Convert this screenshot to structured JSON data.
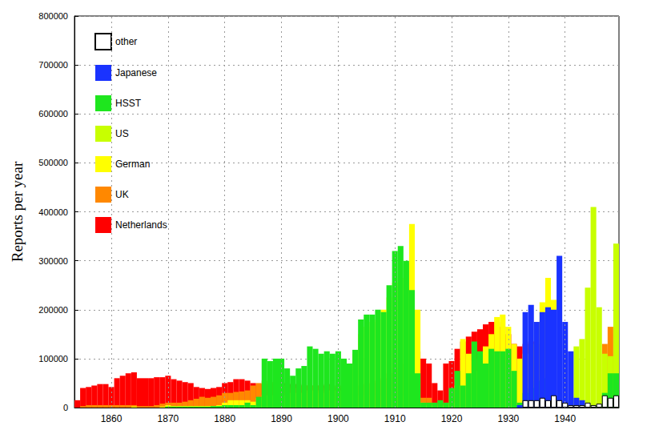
{
  "chart_data": {
    "type": "bar",
    "stacked": true,
    "grid": true,
    "legend": "upper left",
    "ylabel": "Reports per year",
    "xlim": [
      1853.5,
      1949.5
    ],
    "xticks": [
      1860,
      1870,
      1880,
      1890,
      1900,
      1910,
      1920,
      1930,
      1940
    ],
    "ylim": [
      0,
      800000
    ],
    "yticks": [
      0,
      100000,
      200000,
      300000,
      400000,
      500000,
      600000,
      700000,
      800000
    ],
    "x": [
      1854,
      1855,
      1856,
      1857,
      1858,
      1859,
      1860,
      1861,
      1862,
      1863,
      1864,
      1865,
      1866,
      1867,
      1868,
      1869,
      1870,
      1871,
      1872,
      1873,
      1874,
      1875,
      1876,
      1877,
      1878,
      1879,
      1880,
      1881,
      1882,
      1883,
      1884,
      1885,
      1886,
      1887,
      1888,
      1889,
      1890,
      1891,
      1892,
      1893,
      1894,
      1895,
      1896,
      1897,
      1898,
      1899,
      1900,
      1901,
      1902,
      1903,
      1904,
      1905,
      1906,
      1907,
      1908,
      1909,
      1910,
      1911,
      1912,
      1913,
      1914,
      1915,
      1916,
      1917,
      1918,
      1919,
      1920,
      1921,
      1922,
      1923,
      1924,
      1925,
      1926,
      1927,
      1928,
      1929,
      1930,
      1931,
      1932,
      1933,
      1934,
      1935,
      1936,
      1937,
      1938,
      1939,
      1940,
      1941,
      1942,
      1943,
      1944,
      1945,
      1946,
      1947,
      1948,
      1949
    ],
    "series": [
      {
        "name": "Netherlands",
        "color": "#ff0000",
        "values": [
          15000,
          40000,
          42000,
          45000,
          48000,
          48000,
          42000,
          60000,
          65000,
          70000,
          72000,
          60000,
          60000,
          60000,
          62000,
          62000,
          65000,
          58000,
          55000,
          52000,
          50000,
          42000,
          40000,
          38000,
          40000,
          42000,
          50000,
          52000,
          58000,
          58000,
          55000,
          50000,
          48000,
          48000,
          48000,
          50000,
          50000,
          50000,
          48000,
          48000,
          45000,
          45000,
          45000,
          45000,
          48000,
          40000,
          40000,
          35000,
          40000,
          42000,
          45000,
          48000,
          50000,
          55000,
          60000,
          70000,
          80000,
          90000,
          100000,
          110000,
          115000,
          100000,
          90000,
          50000,
          35000,
          90000,
          95000,
          120000,
          135000,
          145000,
          155000,
          160000,
          170000,
          175000,
          175000,
          165000,
          150000,
          130000,
          125000,
          130000,
          135000,
          130000,
          140000,
          155000,
          55000,
          10000,
          5000,
          3000,
          2000,
          2000,
          2000,
          2000,
          2000,
          5000,
          10000,
          30000
        ]
      },
      {
        "name": "UK",
        "color": "#ff8800",
        "values": [
          0,
          3000,
          5000,
          5000,
          5000,
          5000,
          5000,
          5000,
          5000,
          5000,
          5000,
          3000,
          3000,
          3000,
          5000,
          8000,
          10000,
          10000,
          10000,
          12000,
          15000,
          18000,
          22000,
          20000,
          22000,
          25000,
          30000,
          30000,
          32000,
          33000,
          35000,
          45000,
          50000,
          55000,
          52000,
          55000,
          50000,
          45000,
          40000,
          40000,
          45000,
          45000,
          45000,
          40000,
          45000,
          45000,
          45000,
          30000,
          30000,
          30000,
          25000,
          25000,
          25000,
          25000,
          25000,
          25000,
          25000,
          25000,
          25000,
          25000,
          20000,
          20000,
          20000,
          10000,
          5000,
          10000,
          15000,
          40000,
          60000,
          95000,
          100000,
          105000,
          105000,
          95000,
          80000,
          75000,
          65000,
          70000,
          65000,
          50000,
          45000,
          50000,
          50000,
          40000,
          105000,
          10000,
          5000,
          5000,
          3000,
          3000,
          3000,
          3000,
          5000,
          130000,
          165000,
          150000
        ]
      },
      {
        "name": "German",
        "color": "#ffff00",
        "values": [
          0,
          0,
          0,
          0,
          0,
          0,
          0,
          0,
          0,
          0,
          2000,
          0,
          0,
          0,
          0,
          2000,
          5000,
          3000,
          3000,
          3000,
          3000,
          3000,
          3000,
          3000,
          3000,
          5000,
          10000,
          15000,
          15000,
          15000,
          15000,
          12000,
          20000,
          25000,
          25000,
          25000,
          25000,
          25000,
          30000,
          30000,
          30000,
          35000,
          35000,
          30000,
          35000,
          35000,
          35000,
          20000,
          40000,
          110000,
          150000,
          165000,
          175000,
          180000,
          200000,
          225000,
          255000,
          265000,
          295000,
          375000,
          200000,
          10000,
          5000,
          5000,
          0,
          5000,
          10000,
          45000,
          140000,
          110000,
          75000,
          90000,
          125000,
          150000,
          185000,
          190000,
          165000,
          130000,
          100000,
          110000,
          130000,
          175000,
          215000,
          265000,
          220000,
          20000,
          10000,
          2000,
          0,
          0,
          0,
          0,
          0,
          5000,
          5000,
          10000
        ]
      },
      {
        "name": "US",
        "color": "#c8ff00",
        "values": [
          0,
          0,
          0,
          0,
          0,
          0,
          0,
          0,
          0,
          0,
          0,
          0,
          0,
          0,
          0,
          0,
          0,
          0,
          0,
          0,
          0,
          0,
          0,
          0,
          0,
          0,
          0,
          0,
          0,
          0,
          0,
          0,
          0,
          0,
          0,
          0,
          0,
          0,
          0,
          0,
          0,
          0,
          0,
          0,
          0,
          0,
          0,
          0,
          0,
          0,
          0,
          0,
          0,
          0,
          0,
          0,
          0,
          0,
          0,
          0,
          0,
          0,
          0,
          0,
          0,
          0,
          0,
          0,
          0,
          0,
          0,
          0,
          0,
          0,
          0,
          0,
          0,
          0,
          5000,
          0,
          0,
          0,
          0,
          0,
          0,
          5000,
          5000,
          15000,
          125000,
          140000,
          245000,
          410000,
          205000,
          110000,
          105000,
          335000
        ]
      },
      {
        "name": "HSST",
        "color": "#1ee61e",
        "values": [
          0,
          0,
          0,
          0,
          0,
          0,
          0,
          0,
          0,
          0,
          0,
          0,
          0,
          0,
          0,
          0,
          2000,
          2000,
          2000,
          2000,
          2000,
          2000,
          2000,
          2000,
          3000,
          3000,
          5000,
          5000,
          5000,
          5000,
          10000,
          5000,
          22000,
          100000,
          95000,
          100000,
          100000,
          80000,
          65000,
          80000,
          85000,
          125000,
          120000,
          110000,
          115000,
          110000,
          115000,
          100000,
          90000,
          118000,
          180000,
          190000,
          190000,
          200000,
          195000,
          250000,
          320000,
          330000,
          300000,
          240000,
          70000,
          10000,
          10000,
          10000,
          15000,
          10000,
          40000,
          75000,
          45000,
          70000,
          135000,
          115000,
          90000,
          120000,
          115000,
          115000,
          120000,
          75000,
          10000,
          30000,
          40000,
          55000,
          60000,
          30000,
          20000,
          10000,
          0,
          0,
          0,
          0,
          0,
          5000,
          5000,
          30000,
          70000,
          70000
        ]
      },
      {
        "name": "Japanese",
        "color": "#1a33ff",
        "values": [
          0,
          0,
          0,
          0,
          0,
          0,
          0,
          0,
          0,
          0,
          0,
          0,
          0,
          0,
          0,
          0,
          0,
          0,
          0,
          0,
          0,
          0,
          0,
          0,
          0,
          0,
          0,
          0,
          0,
          0,
          0,
          0,
          0,
          0,
          0,
          0,
          0,
          0,
          0,
          0,
          0,
          0,
          0,
          0,
          0,
          0,
          0,
          0,
          0,
          0,
          0,
          0,
          0,
          0,
          0,
          0,
          0,
          0,
          0,
          0,
          0,
          0,
          0,
          0,
          0,
          0,
          0,
          0,
          0,
          0,
          0,
          0,
          0,
          0,
          0,
          0,
          0,
          0,
          5000,
          195000,
          210000,
          175000,
          195000,
          205000,
          200000,
          310000,
          175000,
          115000,
          20000,
          15000,
          0,
          0,
          0,
          0,
          0,
          0
        ]
      },
      {
        "name": "other",
        "color": "#ffffff",
        "values": [
          0,
          0,
          0,
          0,
          0,
          0,
          0,
          0,
          0,
          0,
          0,
          0,
          0,
          0,
          0,
          0,
          0,
          0,
          0,
          0,
          0,
          0,
          0,
          0,
          0,
          0,
          0,
          0,
          0,
          0,
          0,
          0,
          0,
          0,
          0,
          0,
          0,
          0,
          0,
          0,
          0,
          0,
          0,
          0,
          0,
          0,
          0,
          0,
          0,
          0,
          0,
          0,
          0,
          0,
          0,
          0,
          0,
          0,
          0,
          0,
          0,
          0,
          0,
          0,
          0,
          0,
          0,
          0,
          0,
          0,
          0,
          0,
          0,
          0,
          0,
          0,
          0,
          0,
          0,
          15000,
          15000,
          15000,
          20000,
          15000,
          25000,
          15000,
          10000,
          5000,
          5000,
          5000,
          10000,
          5000,
          8000,
          25000,
          20000,
          25000
        ]
      }
    ]
  }
}
